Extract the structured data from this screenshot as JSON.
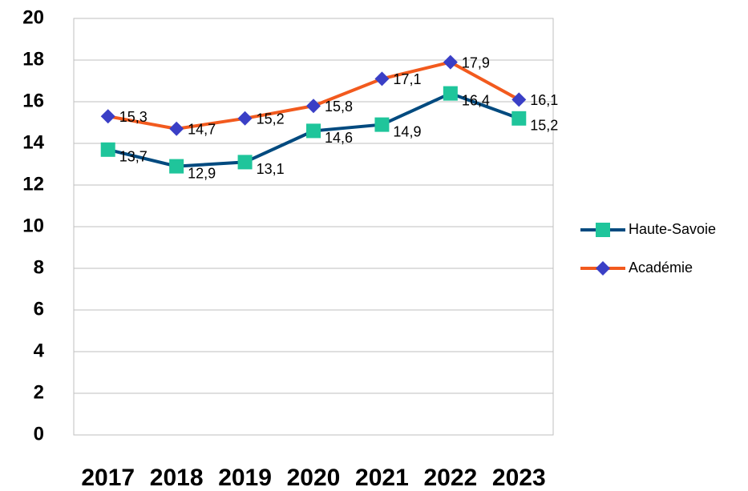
{
  "chart_data": {
    "type": "line",
    "categories": [
      "2017",
      "2018",
      "2019",
      "2020",
      "2021",
      "2022",
      "2023"
    ],
    "series": [
      {
        "name": "Haute-Savoie",
        "color": "#004a7f",
        "marker_color": "#1fc59b",
        "marker": "square",
        "values": [
          13.7,
          12.9,
          13.1,
          14.6,
          14.9,
          16.4,
          15.2
        ],
        "value_labels": [
          "13,7",
          "12,9",
          "13,1",
          "14,6",
          "14,9",
          "16,4",
          "15,2"
        ]
      },
      {
        "name": "Académie",
        "color": "#f25a1e",
        "marker_color": "#3a3fc6",
        "marker": "diamond",
        "values": [
          15.3,
          14.7,
          15.2,
          15.8,
          17.1,
          17.9,
          16.1
        ],
        "value_labels": [
          "15,3",
          "14,7",
          "15,2",
          "15,8",
          "17,1",
          "17,9",
          "16,1"
        ]
      }
    ],
    "ylim": [
      0,
      20
    ],
    "yticks": [
      0,
      2,
      4,
      6,
      8,
      10,
      12,
      14,
      16,
      18,
      20
    ],
    "grid": true,
    "legend": "right"
  }
}
